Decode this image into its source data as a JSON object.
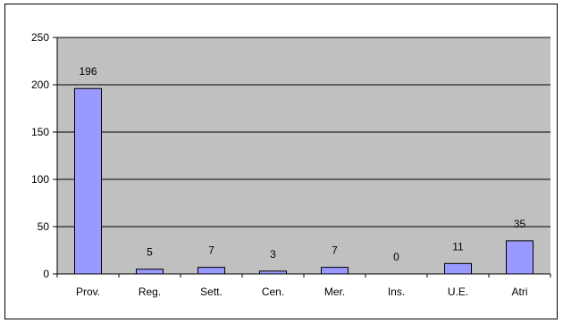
{
  "chart_data": {
    "type": "bar",
    "categories": [
      "Prov.",
      "Reg.",
      "Sett.",
      "Cen.",
      "Mer.",
      "Ins.",
      "U.E.",
      "Atri"
    ],
    "values": [
      196,
      5,
      7,
      3,
      7,
      0,
      11,
      35
    ],
    "data_labels": [
      "196",
      "5",
      "7",
      "3",
      "7",
      "0",
      "11",
      "35"
    ],
    "ylim": [
      0,
      250
    ],
    "yticks": [
      0,
      50,
      100,
      150,
      200,
      250
    ],
    "title": "",
    "xlabel": "",
    "ylabel": "",
    "grid": true,
    "legend": "none"
  },
  "colors": {
    "plot_background": "#c0c0c0",
    "bar_fill": "#9999ff",
    "bar_stroke": "#000000",
    "gridline": "#000000"
  }
}
